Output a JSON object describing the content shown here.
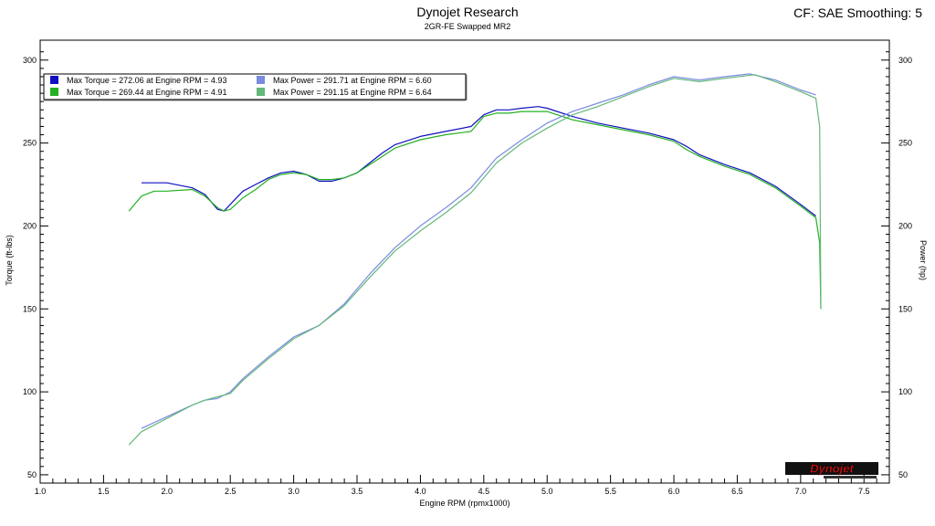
{
  "header": {
    "title": "Dynojet Research",
    "subtitle": "2GR-FE Swapped MR2",
    "cf_info": "CF: SAE Smoothing: 5"
  },
  "logo": {
    "text": "Dynojet"
  },
  "chart_data": {
    "type": "line",
    "xlabel": "Engine RPM (rpmx1000)",
    "ylabel": "Torque (ft-lbs)",
    "y2label": "Power (hp)",
    "xlim": [
      1.0,
      7.7
    ],
    "ylim": [
      45,
      312
    ],
    "x_ticks": [
      "1.0",
      "1.5",
      "2.0",
      "2.5",
      "3.0",
      "3.5",
      "4.0",
      "4.5",
      "5.0",
      "5.5",
      "6.0",
      "6.5",
      "7.0",
      "7.5"
    ],
    "y_ticks": [
      "50",
      "100",
      "150",
      "200",
      "250",
      "300"
    ],
    "grid": false,
    "legend_position": "top-left",
    "legend": [
      "Max Torque = 272.06 at Engine RPM = 4.93",
      "Max Torque = 269.44 at Engine RPM = 4.91",
      "Max Power = 291.71 at Engine RPM = 6.60",
      "Max Power = 291.15 at Engine RPM = 6.64"
    ],
    "colors": {
      "torque1": "#1010c0",
      "torque2": "#22b022",
      "power1": "#7b8be0",
      "power2": "#63b87a"
    },
    "series": [
      {
        "key": "torque1",
        "axis": "left",
        "x": [
          1.8,
          2.0,
          2.2,
          2.3,
          2.4,
          2.45,
          2.5,
          2.6,
          2.7,
          2.8,
          2.9,
          3.0,
          3.1,
          3.2,
          3.3,
          3.4,
          3.5,
          3.6,
          3.7,
          3.8,
          4.0,
          4.2,
          4.4,
          4.5,
          4.6,
          4.7,
          4.8,
          4.93,
          5.0,
          5.2,
          5.4,
          5.6,
          5.8,
          6.0,
          6.1,
          6.2,
          6.4,
          6.6,
          6.8,
          7.0,
          7.12
        ],
        "y": [
          226,
          226,
          223,
          219,
          210,
          209,
          213,
          221,
          225,
          229,
          232,
          233,
          231,
          227,
          227,
          229,
          232,
          238,
          244,
          249,
          254,
          257,
          260,
          267,
          270,
          270,
          271,
          272,
          271,
          266,
          262,
          259,
          256,
          252,
          248,
          243,
          237,
          232,
          224,
          213,
          206
        ]
      },
      {
        "key": "torque2",
        "axis": "left",
        "x": [
          1.7,
          1.8,
          1.9,
          2.0,
          2.2,
          2.3,
          2.4,
          2.45,
          2.5,
          2.6,
          2.7,
          2.8,
          2.9,
          3.0,
          3.1,
          3.2,
          3.3,
          3.4,
          3.5,
          3.6,
          3.7,
          3.8,
          4.0,
          4.2,
          4.4,
          4.5,
          4.6,
          4.7,
          4.8,
          4.91,
          5.0,
          5.2,
          5.4,
          5.6,
          5.8,
          6.0,
          6.1,
          6.2,
          6.4,
          6.6,
          6.8,
          7.0,
          7.12,
          7.15,
          7.16
        ],
        "y": [
          209,
          218,
          221,
          221,
          222,
          218,
          211,
          209,
          210,
          217,
          222,
          228,
          231,
          232,
          231,
          228,
          228,
          229,
          232,
          237,
          242,
          247,
          252,
          255,
          257,
          266,
          268,
          268,
          269,
          269,
          269,
          264,
          261,
          258,
          255,
          251,
          246,
          242,
          236,
          231,
          223,
          212,
          205,
          190,
          150
        ]
      },
      {
        "key": "power1",
        "axis": "right",
        "x": [
          1.8,
          2.0,
          2.2,
          2.3,
          2.4,
          2.5,
          2.6,
          2.8,
          3.0,
          3.2,
          3.4,
          3.6,
          3.8,
          4.0,
          4.2,
          4.4,
          4.6,
          4.8,
          5.0,
          5.2,
          5.4,
          5.6,
          5.8,
          6.0,
          6.2,
          6.4,
          6.6,
          6.8,
          7.0,
          7.12
        ],
        "y": [
          78,
          85,
          92,
          95,
          96,
          100,
          108,
          121,
          133,
          140,
          153,
          171,
          187,
          200,
          211,
          223,
          241,
          252,
          262,
          269,
          274,
          279,
          285,
          290,
          288,
          290,
          291.7,
          288,
          282,
          279
        ]
      },
      {
        "key": "power2",
        "axis": "right",
        "x": [
          1.7,
          1.8,
          2.0,
          2.2,
          2.3,
          2.4,
          2.5,
          2.6,
          2.8,
          3.0,
          3.2,
          3.4,
          3.6,
          3.8,
          4.0,
          4.2,
          4.4,
          4.6,
          4.8,
          5.0,
          5.2,
          5.4,
          5.6,
          5.8,
          6.0,
          6.2,
          6.4,
          6.64,
          6.8,
          7.0,
          7.12,
          7.15,
          7.16
        ],
        "y": [
          68,
          76,
          84,
          92,
          95,
          97,
          99,
          107,
          120,
          132,
          140,
          152,
          169,
          185,
          197,
          208,
          220,
          238,
          250,
          259,
          267,
          272,
          278,
          284,
          289,
          287,
          289,
          291.2,
          287,
          281,
          277,
          260,
          150
        ]
      }
    ]
  }
}
